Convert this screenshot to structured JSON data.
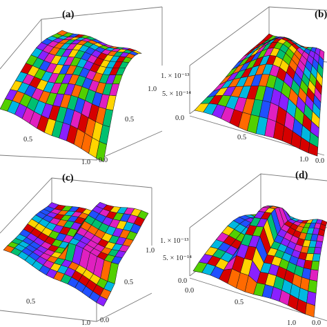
{
  "chart_data": [
    {
      "type": "surface",
      "panel_label": "(a)",
      "x_ticks": [
        "0.5",
        "1.0"
      ],
      "y_ticks": [
        "0.0",
        "0.5",
        "1.0"
      ],
      "z_ticks": [],
      "colormap": [
        "#d60000",
        "#ff6a00",
        "#ffd400",
        "#52d000",
        "#00c070",
        "#00b8e0",
        "#2050ff",
        "#8a20ff",
        "#e020c0"
      ],
      "mesh": true
    },
    {
      "type": "surface",
      "panel_label": "(b)",
      "x_ticks": [
        "0.5",
        "1.0"
      ],
      "y_ticks": [
        "0.0"
      ],
      "z_ticks": [
        "1. × 10⁻¹³",
        "5. × 10⁻¹⁴",
        "0.0"
      ],
      "colormap": [
        "#d60000",
        "#ff6a00",
        "#ffd400",
        "#52d000",
        "#00c070",
        "#00b8e0",
        "#2050ff",
        "#8a20ff",
        "#e020c0"
      ],
      "mesh": true
    },
    {
      "type": "surface",
      "panel_label": "(c)",
      "x_ticks": [
        "0.5",
        "1.0"
      ],
      "y_ticks": [
        "0.0",
        "0.5",
        "1.0"
      ],
      "z_ticks": [],
      "colormap": [
        "#d60000",
        "#ff6a00",
        "#ffd400",
        "#52d000",
        "#00c070",
        "#00b8e0",
        "#2050ff",
        "#8a20ff",
        "#e020c0"
      ],
      "mesh": true
    },
    {
      "type": "surface",
      "panel_label": "(d)",
      "x_ticks": [
        "0.0",
        "0.5",
        "1.0"
      ],
      "y_ticks": [
        "0.0"
      ],
      "z_ticks": [
        "1. × 10⁻¹³",
        "5. × 10⁻¹⁴",
        "0.0"
      ],
      "colormap": [
        "#d60000",
        "#ff6a00",
        "#ffd400",
        "#52d000",
        "#00c070",
        "#00b8e0",
        "#2050ff",
        "#8a20ff",
        "#e020c0"
      ],
      "mesh": true
    }
  ]
}
